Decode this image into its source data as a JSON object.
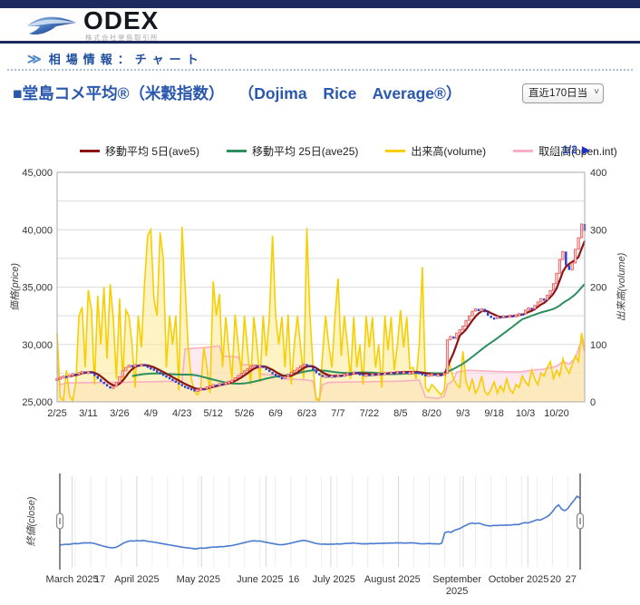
{
  "header": {
    "logo_text": "ODEX",
    "logo_subtext": "株式会社堂島取引所"
  },
  "breadcrumb": {
    "arrow": "≫",
    "label": "相場情報：チャート"
  },
  "page": {
    "title_jp": "■堂島コメ平均®（米穀指数）",
    "title_en": "（Dojima Rice Average®）"
  },
  "range_select": {
    "value": "直近170日当限"
  },
  "legend": {
    "items": [
      {
        "label": "移動平均 5日(ave5)",
        "color": "#8b1515"
      },
      {
        "label": "移動平均 25日(ave25)",
        "color": "#2e8f5e"
      },
      {
        "label": "出来高(volume)",
        "color": "#f7ce00"
      },
      {
        "label": "取組高(open.int)",
        "color": "#f9aec4"
      }
    ]
  },
  "pager": {
    "prev_icon": "◀",
    "label": "1/2",
    "next_icon": "▶"
  },
  "chart_data": [
    {
      "type": "candlestick",
      "name": "main-price-volume-chart",
      "days": 170,
      "x_ticks": {
        "days": [
          0,
          10,
          20,
          30,
          40,
          50,
          60,
          70,
          80,
          90,
          100,
          110,
          120,
          130,
          140,
          150,
          160
        ],
        "labels": [
          "2/25",
          "3/11",
          "3/26",
          "4/9",
          "4/23",
          "5/12",
          "5/26",
          "6/9",
          "6/23",
          "7/7",
          "7/22",
          "8/5",
          "8/20",
          "9/3",
          "9/18",
          "10/3",
          "10/20"
        ]
      },
      "price_axis": {
        "title": "価格(price)",
        "min": 25000,
        "max": 45000,
        "grid_step": 2500,
        "tick_step": 5000
      },
      "volume_axis": {
        "title": "出来高(volume)",
        "min": 0,
        "max": 400,
        "tick_step": 100
      },
      "close": [
        27050,
        27150,
        27250,
        27200,
        27350,
        27450,
        27400,
        27550,
        27650,
        27600,
        27650,
        27500,
        27250,
        27000,
        26750,
        26550,
        26350,
        26250,
        26350,
        26700,
        27200,
        27700,
        28000,
        28200,
        28100,
        28250,
        28150,
        28300,
        28150,
        28000,
        27900,
        27750,
        27600,
        27450,
        27300,
        27150,
        27000,
        26850,
        26700,
        26550,
        26400,
        26300,
        26200,
        26100,
        25950,
        26100,
        26200,
        26150,
        26300,
        26400,
        26500,
        26450,
        26600,
        26550,
        26700,
        26800,
        26900,
        27100,
        27300,
        27500,
        27700,
        27900,
        28100,
        28200,
        28100,
        28150,
        27950,
        27800,
        27600,
        27450,
        27300,
        27150,
        27100,
        27200,
        27350,
        27550,
        27750,
        27950,
        28150,
        28300,
        28200,
        28000,
        27750,
        27500,
        27350,
        27250,
        27300,
        27200,
        27300,
        27250,
        27350,
        27300,
        27400,
        27500,
        27450,
        27600,
        27500,
        27450,
        27350,
        27400,
        27350,
        27450,
        27400,
        27500,
        27450,
        27550,
        27500,
        27600,
        27550,
        27650,
        27600,
        27650,
        27550,
        27600,
        27650,
        27600,
        27500,
        27400,
        27350,
        27400,
        27450,
        27350,
        27400,
        27300,
        27500,
        30400,
        30700,
        30500,
        31000,
        31300,
        31600,
        32100,
        32500,
        32900,
        33100,
        32900,
        33100,
        32800,
        32500,
        32350,
        32300,
        32450,
        32400,
        32500,
        32450,
        32550,
        32500,
        32600,
        32700,
        32650,
        33000,
        33200,
        33100,
        33400,
        33700,
        34000,
        33900,
        34300,
        34700,
        35300,
        36200,
        37400,
        38100,
        36900,
        36500,
        37100,
        38300,
        39300,
        40500,
        39900
      ],
      "volume": [
        120,
        8,
        2,
        55,
        10,
        2,
        35,
        150,
        165,
        60,
        195,
        160,
        30,
        185,
        100,
        200,
        75,
        205,
        145,
        40,
        180,
        35,
        160,
        150,
        100,
        25,
        150,
        95,
        205,
        290,
        300,
        180,
        150,
        295,
        250,
        60,
        150,
        100,
        150,
        20,
        305,
        200,
        95,
        40,
        18,
        12,
        25,
        95,
        60,
        15,
        210,
        150,
        188,
        60,
        148,
        90,
        40,
        152,
        100,
        50,
        150,
        92,
        30,
        148,
        100,
        35,
        150,
        80,
        148,
        290,
        150,
        100,
        148,
        60,
        152,
        30,
        100,
        150,
        95,
        40,
        303,
        150,
        60,
        4,
        2,
        80,
        150,
        100,
        60,
        148,
        215,
        80,
        150,
        100,
        40,
        148,
        60,
        100,
        30,
        150,
        95,
        148,
        60,
        100,
        25,
        150,
        90,
        148,
        55,
        100,
        160,
        95,
        148,
        58,
        60,
        40,
        100,
        235,
        25,
        18,
        30,
        25,
        18,
        12,
        20,
        80,
        60,
        40,
        30,
        25,
        88,
        35,
        20,
        40,
        15,
        25,
        45,
        18,
        12,
        22,
        35,
        15,
        28,
        18,
        40,
        22,
        15,
        30,
        25,
        45,
        35,
        28,
        55,
        40,
        30,
        50,
        45,
        60,
        70,
        40,
        55,
        45,
        75,
        60,
        50,
        65,
        80,
        70,
        120,
        90
      ],
      "open_interest": [
        [
          0,
          64
        ],
        [
          1,
          30
        ],
        [
          3,
          33
        ],
        [
          20,
          34
        ],
        [
          40,
          36
        ],
        [
          41,
          92
        ],
        [
          48,
          95
        ],
        [
          52,
          97
        ],
        [
          53,
          80
        ],
        [
          58,
          78
        ],
        [
          59,
          65
        ],
        [
          64,
          64
        ],
        [
          65,
          48
        ],
        [
          72,
          46
        ],
        [
          73,
          40
        ],
        [
          80,
          38
        ],
        [
          82,
          36
        ],
        [
          83,
          6
        ],
        [
          84,
          5
        ],
        [
          85,
          30
        ],
        [
          87,
          34
        ],
        [
          100,
          35
        ],
        [
          110,
          36
        ],
        [
          116,
          38
        ],
        [
          118,
          8
        ],
        [
          122,
          6
        ],
        [
          124,
          10
        ],
        [
          125,
          30
        ],
        [
          127,
          38
        ],
        [
          128,
          52
        ],
        [
          132,
          55
        ],
        [
          140,
          53
        ],
        [
          148,
          52
        ],
        [
          152,
          55
        ],
        [
          156,
          57
        ],
        [
          160,
          62
        ],
        [
          162,
          70
        ],
        [
          164,
          66
        ],
        [
          166,
          76
        ],
        [
          167,
          92
        ],
        [
          168,
          108
        ],
        [
          169,
          86
        ]
      ],
      "ma5_window": 5,
      "ma25_window": 25,
      "colors": {
        "ma5": "#8b1515",
        "ma25": "#2e8f5e",
        "volume": "#f7ce00",
        "volume_fill": "rgba(251,233,150,0.55)",
        "open_int": "#f9aec4",
        "open_int_fill": "rgba(252,215,226,0.55)",
        "candle_up": "#e25353",
        "candle_up_fill": "#ffd2d2",
        "candle_down": "#2b3ed2",
        "grid": "#dcdcdc",
        "border": "#aaaaaa",
        "tick_text": "#333333"
      }
    },
    {
      "type": "line",
      "name": "navigator-chart",
      "y_label": "終値(close)",
      "series_source": "close",
      "scale": {
        "min": 21000,
        "max": 46000
      },
      "color": "#4a7bd0",
      "x_labels": [
        {
          "text": "March 2025",
          "day": 4
        },
        {
          "text": "17",
          "day": 13
        },
        {
          "text": "April 2025",
          "day": 25
        },
        {
          "text": "May 2025",
          "day": 45
        },
        {
          "text": "June 2025",
          "day": 65
        },
        {
          "text": "16",
          "day": 76
        },
        {
          "text": "July 2025",
          "day": 89
        },
        {
          "text": "August 2025",
          "day": 108
        },
        {
          "text": "September",
          "text2": "2025",
          "day": 129
        },
        {
          "text": "October 2025",
          "day": 149
        },
        {
          "text": "20",
          "day": 161
        },
        {
          "text": "27",
          "day": 166
        }
      ],
      "month_grid_days": [
        4,
        25,
        46,
        67,
        88,
        110,
        131,
        152
      ]
    }
  ]
}
